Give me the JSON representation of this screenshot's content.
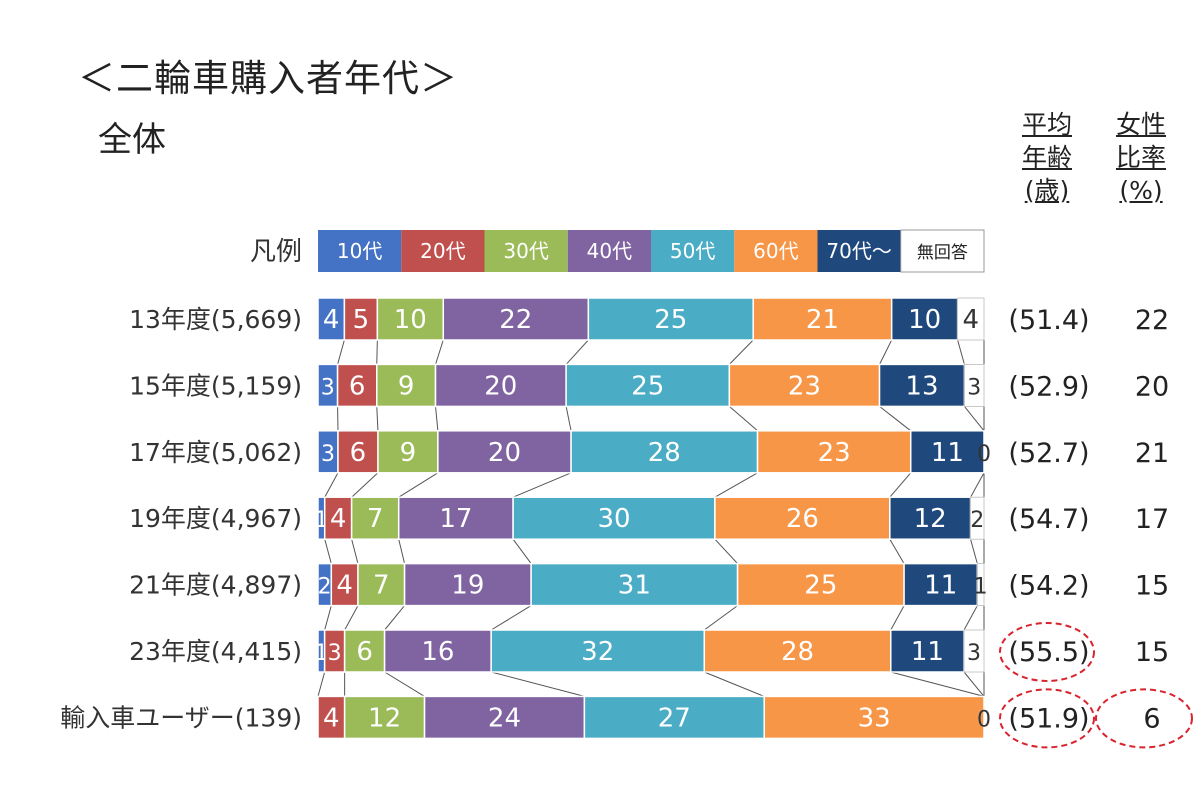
{
  "title": "＜二輪車購入者年代＞",
  "subtitle": "全体",
  "columns": {
    "avg_age": [
      "平均",
      "年齢",
      "(歳)"
    ],
    "female_ratio": [
      "女性",
      "比率",
      "(%)"
    ]
  },
  "chart_data": {
    "type": "bar",
    "stacked": "100%",
    "orientation": "horizontal",
    "legend_label": "凡例",
    "legend_position": "top",
    "categories": [
      "13年度(5,669)",
      "15年度(5,159)",
      "17年度(5,062)",
      "19年度(4,967)",
      "21年度(4,897)",
      "23年度(4,415)",
      "輸入車ユーザー(139)"
    ],
    "series": [
      {
        "name": "10代",
        "color": "#4472c4",
        "values": [
          4,
          3,
          3,
          1,
          2,
          1,
          0
        ]
      },
      {
        "name": "20代",
        "color": "#c0504d",
        "values": [
          5,
          6,
          6,
          4,
          4,
          3,
          4
        ]
      },
      {
        "name": "30代",
        "color": "#9bbb59",
        "values": [
          10,
          9,
          9,
          7,
          7,
          6,
          12
        ]
      },
      {
        "name": "40代",
        "color": "#8064a2",
        "values": [
          22,
          20,
          20,
          17,
          19,
          16,
          24
        ]
      },
      {
        "name": "50代",
        "color": "#4bacc6",
        "values": [
          25,
          25,
          28,
          30,
          31,
          32,
          27
        ]
      },
      {
        "name": "60代",
        "color": "#f79646",
        "values": [
          21,
          23,
          23,
          26,
          25,
          28,
          33
        ]
      },
      {
        "name": "70代～",
        "color": "#1f497d",
        "values": [
          10,
          13,
          11,
          12,
          11,
          11,
          0
        ]
      },
      {
        "name": "無回答",
        "color": "#ffffff",
        "values": [
          4,
          3,
          0,
          2,
          1,
          3,
          0
        ]
      }
    ],
    "avg_age_labels": [
      "(51.4)",
      "(52.9)",
      "(52.7)",
      "(54.7)",
      "(54.2)",
      "(55.5)",
      "(51.9)"
    ],
    "female_ratio_labels": [
      "22",
      "20",
      "21",
      "17",
      "15",
      "15",
      "6"
    ],
    "highlighted": [
      {
        "row": 5,
        "column": "avg_age"
      },
      {
        "row": 6,
        "column": "avg_age"
      },
      {
        "row": 6,
        "column": "female_ratio"
      }
    ],
    "highlight_color": "#d9232d"
  }
}
